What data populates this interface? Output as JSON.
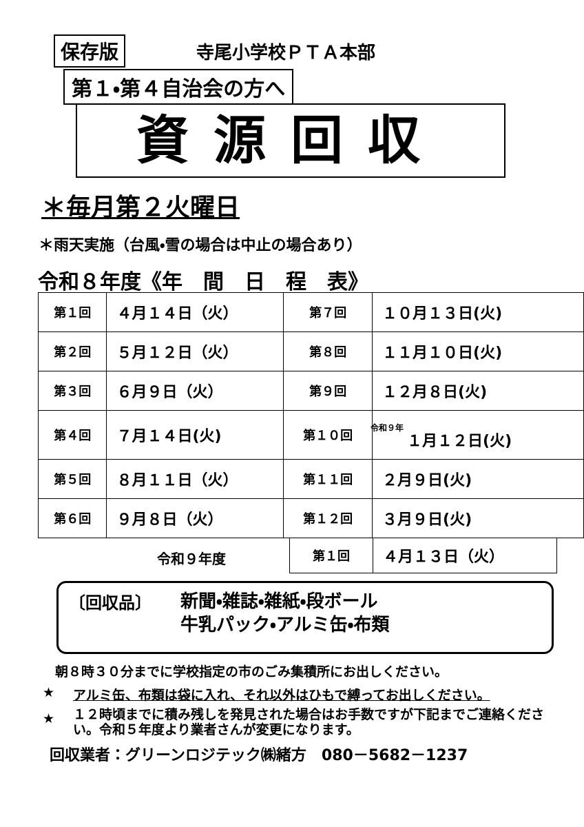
{
  "header": {
    "badge": "保存版",
    "org": "寺尾小学校ＰＴＡ本部",
    "audience": "第１・第４自治会の方へ"
  },
  "title": "資源回収",
  "schedule_rule": "＊毎月第２火曜日",
  "note_rain": "＊雨天実施（台風・雪の場合は中止の場合あり）",
  "table": {
    "title": "令和８年度《年　間　日　程　表》",
    "rows": [
      [
        "第１回",
        "４月１４日（火）",
        "第７回",
        "１０月１３日(火)"
      ],
      [
        "第２回",
        "５月１２日（火）",
        "第８回",
        "１１月１０日(火)"
      ],
      [
        "第３回",
        "６月９日（火）",
        "第９回",
        "１２月８日(火)"
      ],
      [
        "第４回",
        "７月１４日(火)",
        "第１０回",
        "１月１２日(火)"
      ],
      [
        "第５回",
        "８月１１日（火）",
        "第１１回",
        "２月９日(火)"
      ],
      [
        "第６回",
        "９月８日（火）",
        "第１２回",
        "３月９日(火)"
      ]
    ],
    "year_note": "令和９年"
  },
  "next_year": {
    "label": "令和９年度",
    "round": "第１回",
    "date": "４月１３日（火）"
  },
  "items": {
    "label": "〔回収品〕",
    "line1": "新聞・雑誌・雑紙・段ボール",
    "line2": "牛乳パック・アルミ缶・布類"
  },
  "instruction": "朝８時３０分までに学校指定の市のごみ集積所にお出しください。",
  "bullets": [
    {
      "marker": "★",
      "text": "アルミ缶、布類は袋に入れ、それ以外はひもで縛ってお出しください。"
    },
    {
      "marker": "★",
      "text": "１２時頃までに積み残しを発見された場合はお手数ですが下記までご連絡ください。令和５年度より業者さんが変更になります。"
    }
  ],
  "contractor": "回収業者：グリーンロジテック㈱緒方　080－5682－1237"
}
